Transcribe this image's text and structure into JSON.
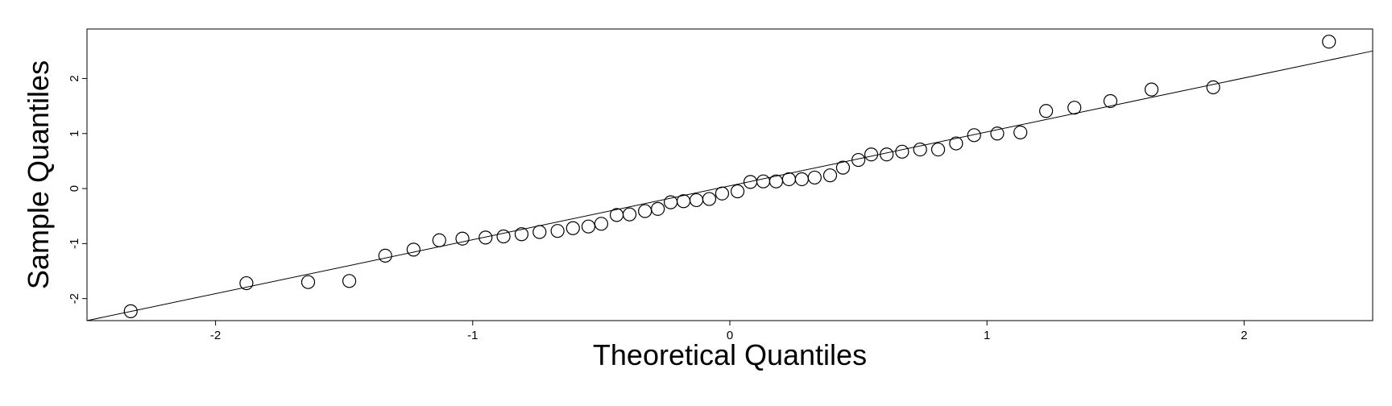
{
  "chart_data": {
    "type": "scatter",
    "title": "",
    "xlabel": "Theoretical Quantiles",
    "ylabel": "Sample Quantiles",
    "xlim": [
      -2.5,
      2.5
    ],
    "ylim": [
      -2.4,
      2.9
    ],
    "x_ticks": [
      -2,
      -1,
      0,
      1,
      2
    ],
    "y_ticks": [
      -2,
      -1,
      0,
      1,
      2
    ],
    "grid": false,
    "reference_line": {
      "intercept": 0.05,
      "slope": 0.98
    },
    "series": [
      {
        "x": [
          -2.33,
          -1.88,
          -1.64,
          -1.48,
          -1.34,
          -1.23,
          -1.13,
          -1.04,
          -0.95,
          -0.88,
          -0.81,
          -0.74,
          -0.67,
          -0.61,
          -0.55,
          -0.5,
          -0.44,
          -0.39,
          -0.33,
          -0.28,
          -0.23,
          -0.18,
          -0.13,
          -0.08,
          -0.03,
          0.03,
          0.08,
          0.13,
          0.18,
          0.23,
          0.28,
          0.33,
          0.39,
          0.44,
          0.5,
          0.55,
          0.61,
          0.67,
          0.74,
          0.81,
          0.88,
          0.95,
          1.04,
          1.13,
          1.23,
          1.34,
          1.48,
          1.64,
          1.88,
          2.33
        ],
        "y": [
          -2.23,
          -1.72,
          -1.7,
          -1.68,
          -1.22,
          -1.11,
          -0.94,
          -0.91,
          -0.89,
          -0.87,
          -0.83,
          -0.79,
          -0.77,
          -0.72,
          -0.69,
          -0.64,
          -0.48,
          -0.47,
          -0.41,
          -0.37,
          -0.25,
          -0.23,
          -0.21,
          -0.19,
          -0.09,
          -0.05,
          0.12,
          0.13,
          0.13,
          0.17,
          0.17,
          0.2,
          0.24,
          0.38,
          0.52,
          0.62,
          0.62,
          0.67,
          0.71,
          0.71,
          0.82,
          0.97,
          1.0,
          1.02,
          1.41,
          1.47,
          1.59,
          1.8,
          1.84,
          2.67
        ]
      }
    ]
  }
}
